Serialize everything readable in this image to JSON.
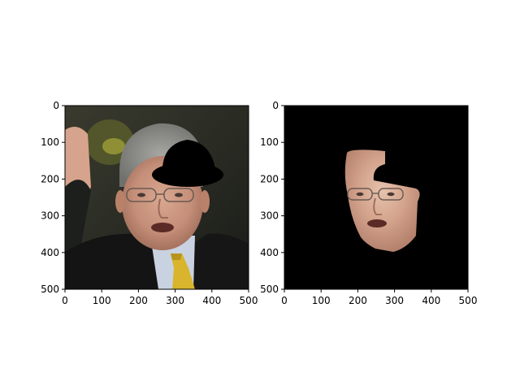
{
  "chart_data": [
    {
      "type": "image",
      "description_shown": "Photograph of a man in a dark suit with a yellow tie, raising his right hand; a black bowler-hat shape occludes the upper right of his head.",
      "xlim": [
        0,
        500
      ],
      "ylim": [
        500,
        0
      ],
      "xticks": [
        0,
        100,
        200,
        300,
        400,
        500
      ],
      "yticks": [
        0,
        100,
        200,
        300,
        400,
        500
      ],
      "grid": false,
      "occluder": {
        "shape": "bowler-hat",
        "color": "#000000"
      }
    },
    {
      "type": "image",
      "description_shown": "Segmented face region of the same man on a black background; the face skin is visible with the hat-shaped area cut out.",
      "xlim": [
        0,
        500
      ],
      "ylim": [
        500,
        0
      ],
      "xticks": [
        0,
        100,
        200,
        300,
        400,
        500
      ],
      "yticks": [
        0,
        100,
        200,
        300,
        400,
        500
      ],
      "grid": false,
      "background_color": "#000000"
    }
  ]
}
